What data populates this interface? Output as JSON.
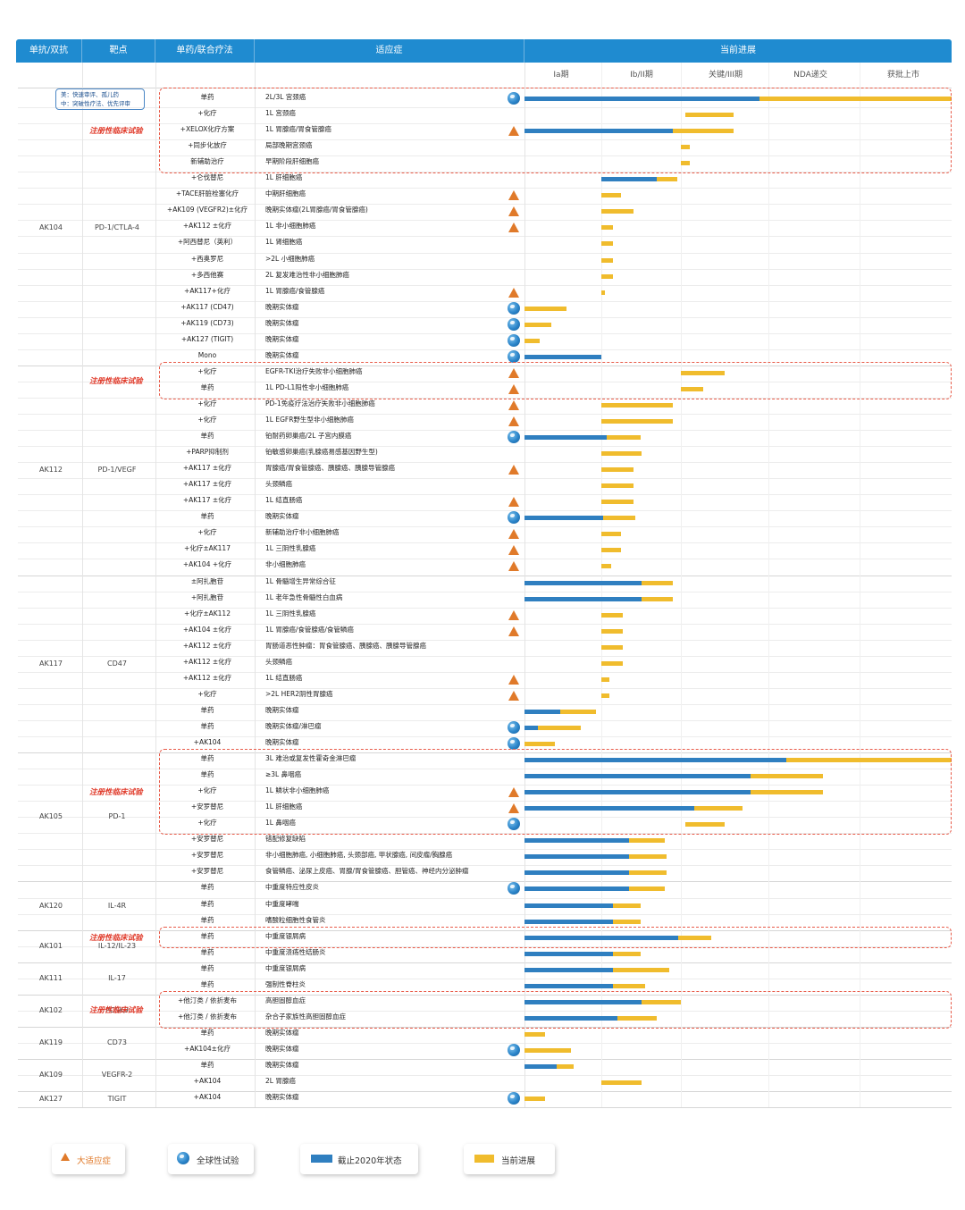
{
  "colors": {
    "header": "#1f8bd0",
    "blue": "#2f7fc0",
    "yellow": "#f0bc2d",
    "triangle": "#e07a2a",
    "dashed": "#e85c4a"
  },
  "note": [
    "美：快速审评、孤儿药",
    "中：突破性疗法、优先评审"
  ],
  "chart_data": {
    "type": "table",
    "title": "",
    "headers": [
      "单抗/双抗",
      "靶点",
      "单药/联合疗法",
      "适应症",
      "当前进展"
    ],
    "phases": [
      "Ia期",
      "Ib/II期",
      "关键/III期",
      "NDA递交",
      "获批上市"
    ],
    "phase_scale": "0=Ia start, 1=Ib/II start, 2=关键/III start, 3=NDA start, 4=获批上市 start, 5=end",
    "legend": [
      "大适应症",
      "全球性试验",
      "截止2020年状态",
      "当前进展"
    ],
    "registration_label": "注册性临床试验",
    "groups": [
      {
        "drug": "AK104",
        "target": "PD-1/CTLA-4",
        "rows": [
          {
            "therapy": "单药",
            "indication": "2L/3L 宫颈癌",
            "blue": 2.9,
            "yellow": 5.0,
            "tri": false,
            "globe": true
          },
          {
            "therapy": "+化疗",
            "indication": "1L 宫颈癌",
            "blue": null,
            "yellow": 2.6,
            "ys": 2.05,
            "tri": false,
            "globe": false
          },
          {
            "therapy": "+XELOX化疗方案",
            "indication": "1L 胃腺癌/胃食管腺癌",
            "blue": 1.9,
            "yellow": 2.6,
            "tri": true,
            "globe": false
          },
          {
            "therapy": "+同步化放疗",
            "indication": "局部晚期宫颈癌",
            "blue": null,
            "yellow": 2.1,
            "ys": 2.0,
            "tri": false,
            "globe": false
          },
          {
            "therapy": "新辅助治疗",
            "indication": "早期阶段肝细胞癌",
            "blue": null,
            "yellow": 2.1,
            "ys": 2.0,
            "tri": false,
            "globe": false
          },
          {
            "therapy": "+仑伐替尼",
            "indication": "1L 肝细胞癌",
            "blue": 1.7,
            "yellow": 1.95,
            "bs": 1.0,
            "tri": false,
            "globe": false
          },
          {
            "therapy": "+TACE肝脏栓塞化疗",
            "indication": "中期肝细胞癌",
            "blue": null,
            "yellow": 1.25,
            "ys": 1.0,
            "tri": true,
            "globe": false
          },
          {
            "therapy": "+AK109 (VEGFR2)±化疗",
            "indication": "晚期实体瘤(2L胃腺癌/胃食管腺癌)",
            "blue": null,
            "yellow": 1.4,
            "ys": 1.0,
            "tri": true,
            "globe": false
          },
          {
            "therapy": "+AK112 ±化疗",
            "indication": "1L 非小细胞肺癌",
            "blue": null,
            "yellow": 1.15,
            "ys": 1.0,
            "tri": true,
            "globe": false
          },
          {
            "therapy": "+阿西替尼（英利）",
            "indication": "1L 肾细胞癌",
            "blue": null,
            "yellow": 1.15,
            "ys": 1.0,
            "tri": false,
            "globe": false
          },
          {
            "therapy": "+西奥罗尼",
            "indication": ">2L 小细胞肺癌",
            "blue": null,
            "yellow": 1.15,
            "ys": 1.0,
            "tri": false,
            "globe": false
          },
          {
            "therapy": "+多西他赛",
            "indication": "2L 复发难治性非小细胞肺癌",
            "blue": null,
            "yellow": 1.15,
            "ys": 1.0,
            "tri": false,
            "globe": false
          },
          {
            "therapy": "+AK117+化疗",
            "indication": "1L 胃腺癌/食管腺癌",
            "blue": null,
            "yellow": 1.05,
            "ys": 1.0,
            "tri": true,
            "globe": false
          },
          {
            "therapy": "+AK117 (CD47)",
            "indication": "晚期实体瘤",
            "blue": null,
            "yellow": 0.55,
            "ys": 0.0,
            "tri": false,
            "globe": true
          },
          {
            "therapy": "+AK119 (CD73)",
            "indication": "晚期实体瘤",
            "blue": null,
            "yellow": 0.35,
            "ys": 0.0,
            "tri": false,
            "globe": true
          },
          {
            "therapy": "+AK127 (TIGIT)",
            "indication": "晚期实体瘤",
            "blue": null,
            "yellow": 0.2,
            "ys": 0.0,
            "tri": false,
            "globe": true
          },
          {
            "therapy": "Mono",
            "indication": "晚期实体瘤",
            "blue": 1.0,
            "yellow": null,
            "tri": false,
            "globe": true
          }
        ]
      },
      {
        "drug": "AK112",
        "target": "PD-1/VEGF",
        "rows": [
          {
            "therapy": "+化疗",
            "indication": "EGFR-TKI治疗失败非小细胞肺癌",
            "blue": null,
            "yellow": 2.5,
            "ys": 2.0,
            "tri": true,
            "globe": false
          },
          {
            "therapy": "单药",
            "indication": "1L PD-L1阳性非小细胞肺癌",
            "blue": null,
            "yellow": 2.25,
            "ys": 2.0,
            "tri": true,
            "globe": false
          },
          {
            "therapy": "+化疗",
            "indication": "PD-1免疫疗法治疗失败非小细胞肺癌",
            "blue": null,
            "yellow": 1.9,
            "ys": 1.0,
            "tri": true,
            "globe": false
          },
          {
            "therapy": "+化疗",
            "indication": "1L EGFR野生型非小细胞肺癌",
            "blue": null,
            "yellow": 1.9,
            "ys": 1.0,
            "tri": true,
            "globe": false
          },
          {
            "therapy": "单药",
            "indication": "铂耐药卵巢癌/2L 子宫内膜癌",
            "blue": 1.07,
            "yellow": 1.5,
            "tri": false,
            "globe": true
          },
          {
            "therapy": "+PARP抑制剂",
            "indication": "铂敏感卵巢癌(乳腺癌易感基因野生型)",
            "blue": null,
            "yellow": 1.5,
            "ys": 1.0,
            "tri": false,
            "globe": false
          },
          {
            "therapy": "+AK117 ±化疗",
            "indication": "胃腺癌/胃食管腺癌、胰腺癌、胰腺导管腺癌",
            "blue": null,
            "yellow": 1.4,
            "ys": 1.0,
            "tri": true,
            "globe": false
          },
          {
            "therapy": "+AK117 ±化疗",
            "indication": "头颈鳞癌",
            "blue": null,
            "yellow": 1.4,
            "ys": 1.0,
            "tri": false,
            "globe": false
          },
          {
            "therapy": "+AK117 ±化疗",
            "indication": "1L 结直肠癌",
            "blue": null,
            "yellow": 1.4,
            "ys": 1.0,
            "tri": true,
            "globe": false
          },
          {
            "therapy": "单药",
            "indication": "晚期实体瘤",
            "blue": 1.02,
            "yellow": 1.43,
            "tri": false,
            "globe": true
          },
          {
            "therapy": "+化疗",
            "indication": "新辅助治疗非小细胞肺癌",
            "blue": null,
            "yellow": 1.25,
            "ys": 1.0,
            "tri": true,
            "globe": false
          },
          {
            "therapy": "+化疗±AK117",
            "indication": "1L 三阴性乳腺癌",
            "blue": null,
            "yellow": 1.25,
            "ys": 1.0,
            "tri": true,
            "globe": false
          },
          {
            "therapy": "+AK104 +化疗",
            "indication": "非小细胞肺癌",
            "blue": null,
            "yellow": 1.12,
            "ys": 1.0,
            "tri": true,
            "globe": false
          }
        ]
      },
      {
        "drug": "AK117",
        "target": "CD47",
        "rows": [
          {
            "therapy": "±阿扎胞苷",
            "indication": "1L 骨髓增生异常综合征",
            "blue": 1.5,
            "yellow": 1.9,
            "tri": false,
            "globe": false
          },
          {
            "therapy": "+阿扎胞苷",
            "indication": "1L 老年急性骨髓性白血病",
            "blue": 1.5,
            "yellow": 1.9,
            "tri": false,
            "globe": false
          },
          {
            "therapy": "+化疗±AK112",
            "indication": "1L 三阴性乳腺癌",
            "blue": null,
            "yellow": 1.27,
            "ys": 1.0,
            "tri": true,
            "globe": false
          },
          {
            "therapy": "+AK104 ±化疗",
            "indication": "1L 胃腺癌/食管腺癌/食管鳞癌",
            "blue": null,
            "yellow": 1.27,
            "ys": 1.0,
            "tri": true,
            "globe": false
          },
          {
            "therapy": "+AK112 ±化疗",
            "indication": "胃肠道恶性肿瘤：胃食管腺癌、胰腺癌、胰腺导管腺癌",
            "blue": null,
            "yellow": 1.27,
            "ys": 1.0,
            "tri": false,
            "globe": false
          },
          {
            "therapy": "+AK112 ±化疗",
            "indication": "头颈鳞癌",
            "blue": null,
            "yellow": 1.27,
            "ys": 1.0,
            "tri": false,
            "globe": false
          },
          {
            "therapy": "+AK112 ±化疗",
            "indication": "1L 结直肠癌",
            "blue": null,
            "yellow": 1.1,
            "ys": 1.0,
            "tri": true,
            "globe": false
          },
          {
            "therapy": "+化疗",
            "indication": ">2L HER2阴性胃腺癌",
            "blue": null,
            "yellow": 1.1,
            "ys": 1.0,
            "tri": true,
            "globe": false
          },
          {
            "therapy": "单药",
            "indication": "晚期实体瘤",
            "blue": 0.46,
            "yellow": 0.93,
            "tri": false,
            "globe": false
          },
          {
            "therapy": "单药",
            "indication": "晚期实体瘤/淋巴瘤",
            "blue": 0.18,
            "yellow": 0.73,
            "tri": false,
            "globe": true
          },
          {
            "therapy": "+AK104",
            "indication": "晚期实体瘤",
            "blue": null,
            "yellow": 0.4,
            "ys": 0.0,
            "tri": false,
            "globe": true
          }
        ]
      },
      {
        "drug": "AK105",
        "target": "PD-1",
        "rows": [
          {
            "therapy": "单药",
            "indication": "3L 难治或复发性霍奇金淋巴瘤",
            "blue": 3.2,
            "yellow": 5.0,
            "tri": false,
            "globe": false
          },
          {
            "therapy": "单药",
            "indication": "≥3L 鼻咽癌",
            "blue": 2.8,
            "yellow": 3.6,
            "tri": false,
            "globe": false
          },
          {
            "therapy": "+化疗",
            "indication": "1L 鳞状非小细胞肺癌",
            "blue": 2.8,
            "yellow": 3.6,
            "tri": true,
            "globe": false
          },
          {
            "therapy": "+安罗替尼",
            "indication": "1L 肝细胞癌",
            "blue": 2.15,
            "yellow": 2.7,
            "tri": true,
            "globe": false
          },
          {
            "therapy": "+化疗",
            "indication": "1L 鼻咽癌",
            "blue": null,
            "yellow": 2.5,
            "ys": 2.05,
            "tri": false,
            "globe": true
          },
          {
            "therapy": "+安罗替尼",
            "indication": "错配修复缺陷",
            "blue": 1.35,
            "yellow": 1.8,
            "tri": false,
            "globe": false
          },
          {
            "therapy": "+安罗替尼",
            "indication": "非小细胞肺癌, 小细胞肺癌, 头颈部癌, 甲状腺癌, 间皮瘤/胸腺癌",
            "blue": 1.35,
            "yellow": 1.82,
            "tri": false,
            "globe": false
          },
          {
            "therapy": "+安罗替尼",
            "indication": "食管鳞癌、泌尿上皮癌、胃腺/胃食管腺癌、胆管癌、神经内分泌肿瘤",
            "blue": 1.35,
            "yellow": 1.82,
            "tri": false,
            "globe": false
          }
        ]
      },
      {
        "drug": "AK120",
        "target": "IL-4R",
        "rows": [
          {
            "therapy": "单药",
            "indication": "中重度特应性皮炎",
            "blue": 1.35,
            "yellow": 1.8,
            "tri": false,
            "globe": true
          },
          {
            "therapy": "单药",
            "indication": "中重度哮喘",
            "blue": 1.15,
            "yellow": 1.5,
            "tri": false,
            "globe": false
          },
          {
            "therapy": "单药",
            "indication": "嗜酸粒细胞性食管炎",
            "blue": 1.15,
            "yellow": 1.5,
            "tri": false,
            "globe": false
          }
        ]
      },
      {
        "drug": "AK101",
        "target": "IL-12/IL-23",
        "rows": [
          {
            "therapy": "单药",
            "indication": "中重度银屑病",
            "blue": 1.97,
            "yellow": 2.35,
            "tri": false,
            "globe": false
          },
          {
            "therapy": "单药",
            "indication": "中重度溃疡性结肠炎",
            "blue": 1.15,
            "yellow": 1.5,
            "tri": false,
            "globe": false
          }
        ]
      },
      {
        "drug": "AK111",
        "target": "IL-17",
        "rows": [
          {
            "therapy": "单药",
            "indication": "中重度银屑病",
            "blue": 1.15,
            "yellow": 1.85,
            "tri": false,
            "globe": false
          },
          {
            "therapy": "单药",
            "indication": "强制性脊柱炎",
            "blue": 1.15,
            "yellow": 1.55,
            "tri": false,
            "globe": false
          }
        ]
      },
      {
        "drug": "AK102",
        "target": "PCSK9",
        "rows": [
          {
            "therapy": "+他汀类 / 依折麦布",
            "indication": "高胆固醇血症",
            "blue": 1.5,
            "yellow": 2.0,
            "tri": false,
            "globe": false
          },
          {
            "therapy": "+他汀类 / 依折麦布",
            "indication": "杂合子家族性高胆固醇血症",
            "blue": 1.2,
            "yellow": 1.7,
            "tri": false,
            "globe": false
          }
        ]
      },
      {
        "drug": "AK119",
        "target": "CD73",
        "rows": [
          {
            "therapy": "单药",
            "indication": "晚期实体瘤",
            "blue": null,
            "yellow": 0.27,
            "ys": 0.0,
            "tri": false,
            "globe": false
          },
          {
            "therapy": "+AK104±化疗",
            "indication": "晚期实体瘤",
            "blue": null,
            "yellow": 0.6,
            "ys": 0.0,
            "tri": false,
            "globe": true
          }
        ]
      },
      {
        "drug": "AK109",
        "target": "VEGFR-2",
        "rows": [
          {
            "therapy": "单药",
            "indication": "晚期实体瘤",
            "blue": 0.42,
            "yellow": 0.64,
            "tri": false,
            "globe": false
          },
          {
            "therapy": "+AK104",
            "indication": "2L 胃腺癌",
            "blue": null,
            "yellow": 1.5,
            "ys": 1.0,
            "tri": false,
            "globe": false
          }
        ]
      },
      {
        "drug": "AK127",
        "target": "TIGIT",
        "rows": [
          {
            "therapy": "+AK104",
            "indication": "晚期实体瘤",
            "blue": null,
            "yellow": 0.27,
            "ys": 0.0,
            "tri": false,
            "globe": true
          }
        ]
      }
    ],
    "registration_boxes": [
      {
        "group": 0,
        "rows": [
          0,
          4
        ]
      },
      {
        "group": 1,
        "rows": [
          0,
          1
        ]
      },
      {
        "group": 3,
        "rows": [
          0,
          4
        ]
      },
      {
        "group": 5,
        "rows": [
          0,
          0
        ]
      },
      {
        "group": 7,
        "rows": [
          0,
          1
        ]
      }
    ]
  }
}
